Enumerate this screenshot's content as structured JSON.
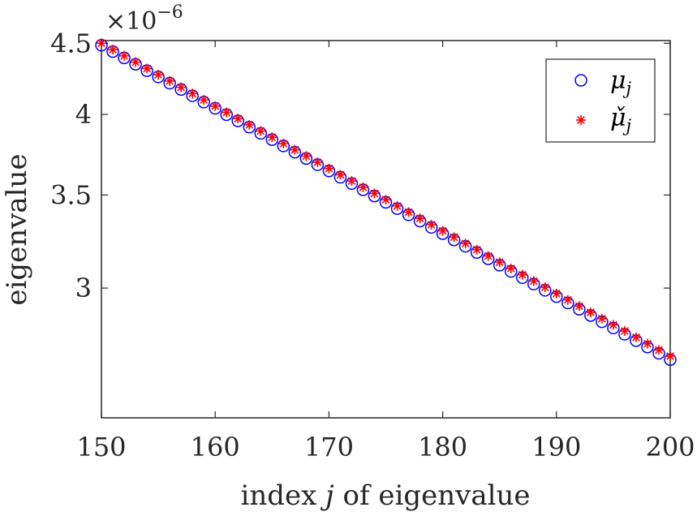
{
  "chart_data": {
    "type": "scatter",
    "title": "",
    "xlabel": "index j of eigenvalue",
    "xlabel_parts": {
      "before": "index ",
      "var": "j",
      "after": " of eigenvalue"
    },
    "ylabel": "eigenvalue",
    "y_multiplier": "×10",
    "y_multiplier_exponent": "−6",
    "xlim": [
      150,
      200
    ],
    "ylim": [
      2.42,
      4.52
    ],
    "xticks": [
      150,
      160,
      170,
      180,
      190,
      200
    ],
    "xtick_labels": [
      "150",
      "160",
      "170",
      "180",
      "190",
      "200"
    ],
    "yticks": [
      3,
      3.5,
      4,
      4.5
    ],
    "ytick_labels": [
      "3",
      "3.5",
      "4",
      "4.5"
    ],
    "yscale": "log",
    "grid": false,
    "legend_position": "top-right",
    "series": [
      {
        "name": "μ_j",
        "legend_base": "μ",
        "legend_sub": "j",
        "marker": "circle",
        "color": "#0000ff",
        "x": [
          150,
          151,
          152,
          153,
          154,
          155,
          156,
          157,
          158,
          159,
          160,
          161,
          162,
          163,
          164,
          165,
          166,
          167,
          168,
          169,
          170,
          171,
          172,
          173,
          174,
          175,
          176,
          177,
          178,
          179,
          180,
          181,
          182,
          183,
          184,
          185,
          186,
          187,
          188,
          189,
          190,
          191,
          192,
          193,
          194,
          195,
          196,
          197,
          198,
          199,
          200
        ],
        "values": [
          4.485,
          4.438,
          4.392,
          4.346,
          4.3,
          4.256,
          4.212,
          4.168,
          4.125,
          4.082,
          4.04,
          3.998,
          3.957,
          3.916,
          3.876,
          3.836,
          3.796,
          3.757,
          3.718,
          3.68,
          3.642,
          3.604,
          3.567,
          3.53,
          3.494,
          3.458,
          3.422,
          3.387,
          3.352,
          3.317,
          3.283,
          3.249,
          3.215,
          3.182,
          3.149,
          3.116,
          3.084,
          3.052,
          3.02,
          2.989,
          2.958,
          2.927,
          2.897,
          2.867,
          2.837,
          2.808,
          2.779,
          2.75,
          2.721,
          2.693,
          2.665
        ]
      },
      {
        "name": "μ̌_j",
        "legend_base": "μ̌",
        "legend_sub": "j",
        "marker": "asterisk",
        "color": "#ff0000",
        "x": [
          150,
          151,
          152,
          153,
          154,
          155,
          156,
          157,
          158,
          159,
          160,
          161,
          162,
          163,
          164,
          165,
          166,
          167,
          168,
          169,
          170,
          171,
          172,
          173,
          174,
          175,
          176,
          177,
          178,
          179,
          180,
          181,
          182,
          183,
          184,
          185,
          186,
          187,
          188,
          189,
          190,
          191,
          192,
          193,
          194,
          195,
          196,
          197,
          198,
          199,
          200
        ],
        "values": [
          4.5,
          4.453,
          4.407,
          4.361,
          4.315,
          4.271,
          4.227,
          4.183,
          4.14,
          4.097,
          4.055,
          4.013,
          3.972,
          3.931,
          3.891,
          3.851,
          3.811,
          3.772,
          3.733,
          3.695,
          3.657,
          3.619,
          3.582,
          3.545,
          3.509,
          3.473,
          3.437,
          3.402,
          3.367,
          3.332,
          3.298,
          3.264,
          3.23,
          3.197,
          3.164,
          3.131,
          3.099,
          3.067,
          3.035,
          3.004,
          2.973,
          2.942,
          2.912,
          2.882,
          2.852,
          2.823,
          2.794,
          2.765,
          2.736,
          2.708,
          2.68
        ]
      }
    ]
  },
  "colors": {
    "axis": "#262626",
    "background": "#ffffff"
  }
}
